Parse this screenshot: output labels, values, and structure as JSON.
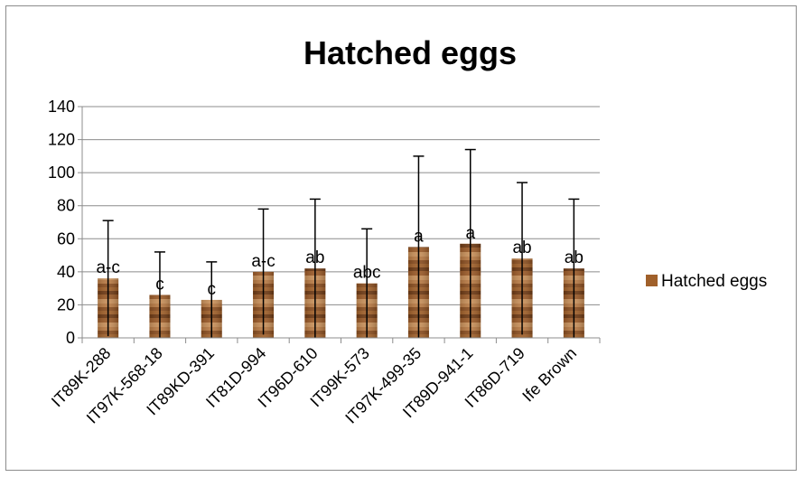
{
  "chart_data": {
    "type": "bar",
    "title": "Hatched eggs",
    "xlabel": "",
    "ylabel": "",
    "ylim": [
      0,
      140
    ],
    "yticks": [
      0,
      20,
      40,
      60,
      80,
      100,
      120,
      140
    ],
    "grid": true,
    "legend_position": "right",
    "categories": [
      "IT89K-288",
      "IT97K-568-18",
      "IT89KD-391",
      "IT81D-994",
      "IT96D-610",
      "IT99K-573",
      "IT97K-499-35",
      "IT89D-941-1",
      "IT86D-719",
      "Ife Brown"
    ],
    "series": [
      {
        "name": "Hatched eggs",
        "values": [
          36,
          26,
          23,
          40,
          42,
          33,
          55,
          57,
          48,
          42
        ],
        "error_upper": [
          71,
          52,
          46,
          78,
          84,
          66,
          110,
          114,
          94,
          84
        ],
        "significance_labels": [
          "a-c",
          "c",
          "c",
          "a-c",
          "ab",
          "abc",
          "a",
          "a",
          "ab",
          "ab"
        ]
      }
    ],
    "colors": {
      "bar_base": "#a0602a",
      "bar_stripe_dark": "#6e3a14",
      "bar_stripe_light": "#c8905a",
      "gridline": "#8c8c8c",
      "axis": "#8c8c8c",
      "error_bar": "#000000"
    }
  }
}
